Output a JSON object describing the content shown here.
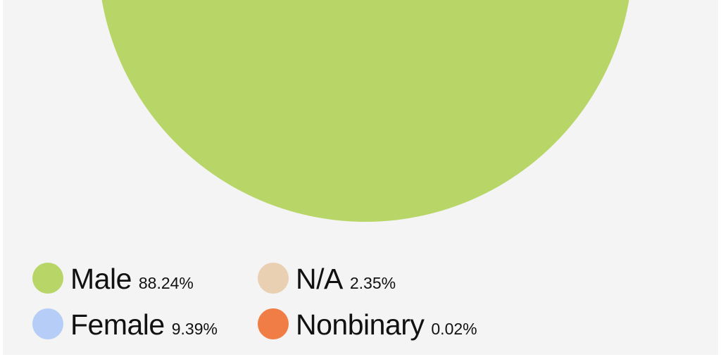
{
  "colors": {
    "male": "#b8d667",
    "female": "#b6cdf7",
    "na": "#ead0b2",
    "nonbinary": "#ef7d45"
  },
  "chart_data": {
    "type": "pie",
    "slices": [
      {
        "label": "Male",
        "value": 88.24,
        "display": "88.24%",
        "color": "#b8d667"
      },
      {
        "label": "Female",
        "value": 9.39,
        "display": "9.39%",
        "color": "#b6cdf7"
      },
      {
        "label": "N/A",
        "value": 2.35,
        "display": "2.35%",
        "color": "#ead0b2"
      },
      {
        "label": "Nonbinary",
        "value": 0.02,
        "display": "0.02%",
        "color": "#ef7d45"
      }
    ],
    "legend_placement": "bottom"
  }
}
